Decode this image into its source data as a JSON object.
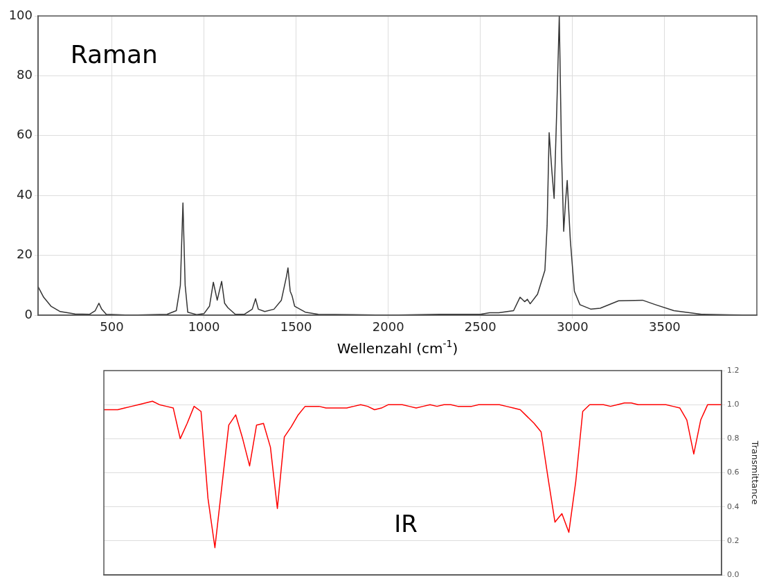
{
  "chart_data": [
    {
      "type": "line",
      "title": "Raman",
      "xlabel": "Wellenzahl (cm$^{-1}$)",
      "color": "#333333",
      "marker": "none",
      "line_style": "solid",
      "grid": true,
      "x": [
        100,
        130,
        170,
        220,
        300,
        380,
        410,
        430,
        445,
        470,
        600,
        800,
        850,
        872,
        886,
        898,
        912,
        960,
        1000,
        1030,
        1051,
        1072,
        1096,
        1112,
        1130,
        1170,
        1220,
        1262,
        1280,
        1295,
        1330,
        1380,
        1420,
        1448,
        1456,
        1468,
        1478,
        1492,
        1550,
        1620,
        1800,
        2000,
        2280,
        2500,
        2550,
        2600,
        2680,
        2715,
        2740,
        2755,
        2770,
        2810,
        2850,
        2862,
        2873,
        2888,
        2900,
        2915,
        2928,
        2940,
        2952,
        2962,
        2971,
        2988,
        3010,
        3040,
        3100,
        3150,
        3250,
        3380,
        3450,
        3550,
        3700,
        3850,
        4000
      ],
      "values": [
        9.5,
        6,
        3,
        1.2,
        0.4,
        0.3,
        1.5,
        4,
        2,
        0.3,
        0,
        0.3,
        1.5,
        10,
        37.5,
        10,
        1,
        0.2,
        0.5,
        3,
        11,
        5,
        11.3,
        4,
        2.5,
        0.3,
        0.3,
        2,
        5.5,
        2,
        1.2,
        2,
        5,
        13,
        15.8,
        8,
        6.5,
        3,
        1,
        0.3,
        0.2,
        0,
        0.3,
        0.3,
        0.8,
        0.8,
        1.5,
        6,
        4.5,
        5.3,
        3.8,
        7,
        15,
        30,
        61,
        48,
        39,
        70,
        100,
        55,
        28,
        38,
        45,
        25,
        8,
        3.5,
        2,
        2.3,
        4.8,
        5,
        3.5,
        1.5,
        0.3,
        0.1,
        0
      ],
      "xlim": [
        100,
        4000
      ],
      "xticks": [
        500,
        1000,
        1500,
        2000,
        2500,
        3000,
        3500
      ],
      "ylim": [
        0,
        100
      ],
      "yticks": [
        0,
        20,
        40,
        60,
        80,
        100
      ]
    },
    {
      "type": "line",
      "title": "IR",
      "ylabel": "Transmittance",
      "color": "#ff0000",
      "marker": "none",
      "line_style": "solid",
      "grid": "y",
      "tick_labels": "y",
      "categories": [
        null,
        null,
        null,
        null,
        null,
        null,
        null,
        null,
        null,
        null,
        null,
        null,
        null,
        null,
        null,
        null,
        null,
        null,
        null,
        null,
        null,
        null,
        null,
        null,
        null,
        null,
        null,
        null,
        null,
        null,
        null,
        null,
        null,
        null,
        null,
        null,
        null,
        null,
        null,
        null,
        null,
        null,
        null,
        null,
        null,
        null,
        null,
        null,
        null,
        null,
        null,
        null,
        null,
        null,
        null,
        null,
        null,
        null,
        null,
        null,
        null,
        null,
        null,
        null,
        null,
        null,
        null,
        null,
        null,
        null,
        null,
        null,
        null,
        null,
        null,
        null,
        null,
        null,
        null,
        null,
        null,
        null,
        null,
        null,
        null,
        null,
        null,
        null,
        null,
        null
      ],
      "values": [
        0.97,
        0.97,
        0.97,
        0.98,
        0.99,
        1.0,
        1.01,
        1.02,
        1.0,
        0.99,
        0.98,
        0.8,
        0.89,
        0.99,
        0.96,
        0.45,
        0.16,
        0.52,
        0.88,
        0.94,
        0.8,
        0.64,
        0.88,
        0.89,
        0.75,
        0.39,
        0.81,
        0.87,
        0.94,
        0.99,
        0.99,
        0.99,
        0.98,
        0.98,
        0.98,
        0.98,
        0.99,
        1.0,
        0.99,
        0.97,
        0.98,
        1.0,
        1.0,
        1.0,
        0.99,
        0.98,
        0.99,
        1.0,
        0.99,
        1.0,
        1.0,
        0.99,
        0.99,
        0.99,
        1.0,
        1.0,
        1.0,
        1.0,
        0.99,
        0.98,
        0.97,
        0.93,
        0.89,
        0.84,
        0.57,
        0.31,
        0.36,
        0.25,
        0.55,
        0.96,
        1.0,
        1.0,
        1.0,
        0.99,
        1.0,
        1.01,
        1.01,
        1.0,
        1.0,
        1.0,
        1.0,
        1.0,
        0.99,
        0.98,
        0.91,
        0.71,
        0.91,
        1.0,
        1.0,
        1.0
      ],
      "ylim": [
        0,
        1.2
      ],
      "yticks": [
        {
          "value": 0,
          "label": "0.0"
        },
        {
          "value": 0.2,
          "label": "0.2"
        },
        {
          "value": 0.4,
          "label": "0.4"
        },
        {
          "value": 0.6,
          "label": "0.6"
        },
        {
          "value": 0.8,
          "label": "0.8"
        },
        {
          "value": 1.0,
          "label": "1.0"
        },
        {
          "value": 1.2,
          "label": "1.2"
        }
      ]
    }
  ]
}
